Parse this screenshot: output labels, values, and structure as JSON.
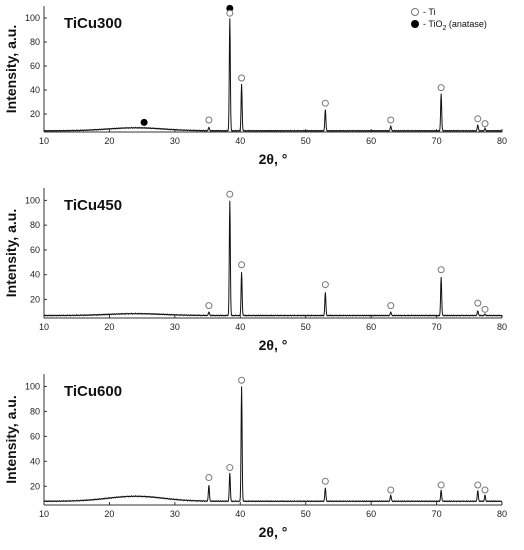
{
  "chart_data": [
    {
      "type": "line",
      "title": "TiCu300",
      "xlabel": "2θ, °",
      "ylabel": "Intensity, a.u.",
      "xlim": [
        10,
        80
      ],
      "ylim": [
        5,
        110
      ],
      "xticks": [
        "10",
        "20",
        "30",
        "40",
        "50",
        "60",
        "70",
        "80"
      ],
      "yticks": [
        "20",
        "40",
        "60",
        "80",
        "100"
      ],
      "background": {
        "base": 6,
        "hump_center": 24,
        "hump_height": 2.5,
        "hump_width": 6
      },
      "peaks": [
        {
          "x": 35.2,
          "y": 9
        },
        {
          "x": 38.4,
          "y": 100
        },
        {
          "x": 40.2,
          "y": 45
        },
        {
          "x": 53.0,
          "y": 24
        },
        {
          "x": 63.0,
          "y": 10
        },
        {
          "x": 70.7,
          "y": 37
        },
        {
          "x": 76.3,
          "y": 11
        },
        {
          "x": 77.4,
          "y": 8
        }
      ],
      "markers": [
        {
          "x": 25.3,
          "y": 13,
          "kind": "TiO2"
        },
        {
          "x": 35.2,
          "y": 15,
          "kind": "Ti"
        },
        {
          "x": 38.4,
          "y": 108,
          "kind": "TiO2"
        },
        {
          "x": 38.4,
          "y": 104,
          "kind": "Ti"
        },
        {
          "x": 40.2,
          "y": 50,
          "kind": "Ti"
        },
        {
          "x": 53.0,
          "y": 29,
          "kind": "Ti"
        },
        {
          "x": 63.0,
          "y": 15,
          "kind": "Ti"
        },
        {
          "x": 70.7,
          "y": 42,
          "kind": "Ti"
        },
        {
          "x": 76.3,
          "y": 16,
          "kind": "Ti"
        },
        {
          "x": 77.4,
          "y": 12,
          "kind": "Ti"
        }
      ],
      "legend": {
        "position": "top-right",
        "entries": [
          {
            "kind": "Ti",
            "label": "- Ti"
          },
          {
            "kind": "TiO2",
            "label": "- TiO",
            "sub": "2",
            "suffix": " (anatase)"
          }
        ]
      }
    },
    {
      "type": "line",
      "title": "TiCu450",
      "xlabel": "2θ, °",
      "ylabel": "Intensity, a.u.",
      "xlim": [
        10,
        80
      ],
      "ylim": [
        5,
        110
      ],
      "xticks": [
        "10",
        "20",
        "30",
        "40",
        "50",
        "60",
        "70",
        "80"
      ],
      "yticks": [
        "20",
        "40",
        "60",
        "80",
        "100"
      ],
      "background": {
        "base": 7,
        "hump_center": 24,
        "hump_height": 1.5,
        "hump_width": 6
      },
      "peaks": [
        {
          "x": 35.2,
          "y": 10
        },
        {
          "x": 38.4,
          "y": 100
        },
        {
          "x": 40.2,
          "y": 42
        },
        {
          "x": 53.0,
          "y": 26
        },
        {
          "x": 63.0,
          "y": 10
        },
        {
          "x": 70.7,
          "y": 38
        },
        {
          "x": 76.3,
          "y": 11
        },
        {
          "x": 77.4,
          "y": 8
        }
      ],
      "markers": [
        {
          "x": 35.2,
          "y": 15,
          "kind": "Ti"
        },
        {
          "x": 38.4,
          "y": 105,
          "kind": "Ti"
        },
        {
          "x": 40.2,
          "y": 48,
          "kind": "Ti"
        },
        {
          "x": 53.0,
          "y": 32,
          "kind": "Ti"
        },
        {
          "x": 63.0,
          "y": 15,
          "kind": "Ti"
        },
        {
          "x": 70.7,
          "y": 44,
          "kind": "Ti"
        },
        {
          "x": 76.3,
          "y": 17,
          "kind": "Ti"
        },
        {
          "x": 77.4,
          "y": 12,
          "kind": "Ti"
        }
      ],
      "legend": null
    },
    {
      "type": "line",
      "title": "TiCu600",
      "xlabel": "2θ, °",
      "ylabel": "Intensity, a.u.",
      "xlim": [
        10,
        80
      ],
      "ylim": [
        5,
        110
      ],
      "xticks": [
        "10",
        "20",
        "30",
        "40",
        "50",
        "60",
        "70",
        "80"
      ],
      "yticks": [
        "20",
        "40",
        "60",
        "80",
        "100"
      ],
      "background": {
        "base": 8,
        "hump_center": 24,
        "hump_height": 4,
        "hump_width": 6
      },
      "peaks": [
        {
          "x": 35.2,
          "y": 21
        },
        {
          "x": 38.4,
          "y": 31
        },
        {
          "x": 40.2,
          "y": 100
        },
        {
          "x": 53.0,
          "y": 19
        },
        {
          "x": 63.0,
          "y": 13
        },
        {
          "x": 70.7,
          "y": 17
        },
        {
          "x": 76.3,
          "y": 17
        },
        {
          "x": 77.4,
          "y": 13
        }
      ],
      "markers": [
        {
          "x": 35.2,
          "y": 27,
          "kind": "Ti"
        },
        {
          "x": 38.4,
          "y": 35,
          "kind": "Ti"
        },
        {
          "x": 40.2,
          "y": 105,
          "kind": "Ti"
        },
        {
          "x": 53.0,
          "y": 24,
          "kind": "Ti"
        },
        {
          "x": 63.0,
          "y": 17,
          "kind": "Ti"
        },
        {
          "x": 70.7,
          "y": 21,
          "kind": "Ti"
        },
        {
          "x": 76.3,
          "y": 21,
          "kind": "Ti"
        },
        {
          "x": 77.4,
          "y": 17,
          "kind": "Ti"
        }
      ],
      "legend": null
    }
  ]
}
